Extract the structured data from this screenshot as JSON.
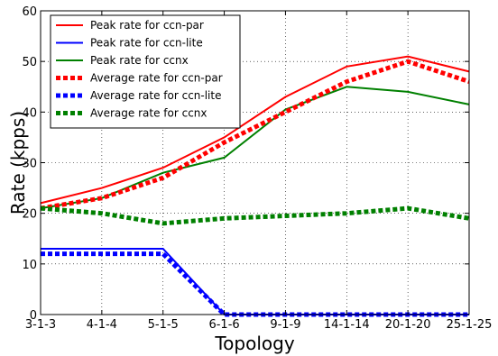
{
  "chart_data": {
    "type": "line",
    "title": "",
    "xlabel": "Topology",
    "ylabel": "Rate (kpps)",
    "categories": [
      "3-1-3",
      "4-1-4",
      "5-1-5",
      "6-1-6",
      "9-1-9",
      "14-1-14",
      "20-1-20",
      "25-1-25"
    ],
    "ylim": [
      0,
      60
    ],
    "yticks": [
      0,
      10,
      20,
      30,
      40,
      50,
      60
    ],
    "grid": true,
    "legend_position": "top-left",
    "series": [
      {
        "name": "Peak rate for ccn-par",
        "color": "#ff0000",
        "style": "solid",
        "values": [
          22,
          25,
          29,
          35,
          43,
          49,
          51,
          48
        ]
      },
      {
        "name": "Peak rate for ccn-lite",
        "color": "#0000ff",
        "style": "solid",
        "values": [
          13,
          13,
          13,
          0,
          0,
          0,
          0,
          0
        ]
      },
      {
        "name": "Peak rate for ccnx",
        "color": "#008000",
        "style": "solid",
        "values": [
          21,
          23,
          28,
          31,
          40.5,
          45,
          44,
          41.5
        ]
      },
      {
        "name": "Average rate for ccn-par",
        "color": "#ff0000",
        "style": "dotted",
        "values": [
          21,
          23,
          27,
          34,
          40,
          46,
          50,
          46
        ]
      },
      {
        "name": "Average rate for ccn-lite",
        "color": "#0000ff",
        "style": "dotted",
        "values": [
          12,
          12,
          12,
          0,
          0,
          0,
          0,
          0
        ]
      },
      {
        "name": "Average rate for ccnx",
        "color": "#008000",
        "style": "dotted",
        "values": [
          21,
          20,
          18,
          19,
          19.5,
          20,
          21,
          19
        ]
      }
    ]
  }
}
